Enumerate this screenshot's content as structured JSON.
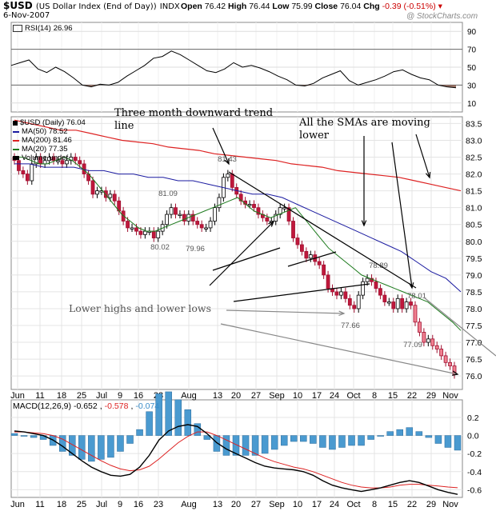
{
  "header": {
    "symbol": "$USD",
    "name": "(US Dollar Index (End of Day))",
    "exchange": "INDX",
    "date": "6-Nov-2007",
    "open_label": "Open",
    "open": "76.42",
    "high_label": "High",
    "high": "76.44",
    "low_label": "Low",
    "low": "75.99",
    "close_label": "Close",
    "close": "76.04",
    "chg_label": "Chg",
    "chg": "-0.39 (-0.51%)",
    "brand": "@ StockCharts.com"
  },
  "rsi": {
    "label": "RSI(14)",
    "value": "26.96",
    "ticks": [
      90,
      70,
      50,
      30,
      10
    ]
  },
  "price_legend": [
    {
      "text": "$USD (Daily) 76.04",
      "color": "#000000"
    },
    {
      "text": "MA(50) 78.52",
      "color": "#1a1aa0"
    },
    {
      "text": "MA(200) 81.46",
      "color": "#dd2222"
    },
    {
      "text": "MA(20) 77.35",
      "color": "#1c7a1c"
    },
    {
      "text": "Volume undef",
      "color": "#000000"
    }
  ],
  "macd": {
    "label": "MACD(12,26,9)",
    "macd": "-0.652",
    "signal": "-0.578",
    "hist": "-0.074",
    "ticks": [
      "0.2",
      "0.0",
      "-0.2",
      "-0.4",
      "-0.6"
    ]
  },
  "annotations": {
    "trendline": "Three month downward trend line",
    "smas": "All the SMAs are moving lower",
    "lows": "Lower highs and lower lows"
  },
  "x_labels": [
    "Jun",
    "11",
    "18",
    "25",
    "Jul",
    "9",
    "16",
    "23",
    "Aug",
    "13",
    "20",
    "27",
    "Sep",
    "10",
    "17",
    "24",
    "Oct",
    "8",
    "15",
    "22",
    "29",
    "Nov"
  ],
  "chart_data": {
    "type": "line",
    "title": "$USD (US Dollar Index (End of Day)) INDX",
    "ylim": [
      75.6,
      83.7
    ],
    "price_ticks": [
      83.5,
      83.0,
      82.5,
      82.0,
      81.5,
      81.0,
      80.5,
      80.0,
      79.5,
      79.0,
      78.5,
      78.0,
      77.5,
      77.0,
      76.5,
      76.0
    ],
    "data_labels": [
      {
        "text": "81.43",
        "value": 81.43
      },
      {
        "text": "81.09",
        "value": 81.09
      },
      {
        "text": "80.02",
        "value": 80.02
      },
      {
        "text": "79.96",
        "value": 79.96
      },
      {
        "text": "78.89",
        "value": 78.89
      },
      {
        "text": "78.01",
        "value": 78.01
      },
      {
        "text": "77.66",
        "value": 77.66
      },
      {
        "text": "77.09",
        "value": 77.09
      }
    ],
    "series": [
      {
        "name": "$USD (Daily)",
        "close": [
          82.4,
          82.1,
          82.0,
          81.8,
          82.3,
          82.5,
          82.3,
          82.4,
          82.5,
          82.4,
          82.4,
          82.3,
          82.4,
          82.5,
          82.4,
          82.3,
          82.0,
          81.8,
          81.4,
          81.5,
          81.5,
          81.3,
          81.4,
          81.2,
          80.9,
          80.6,
          80.4,
          80.4,
          80.3,
          80.2,
          80.3,
          80.3,
          80.1,
          80.3,
          80.5,
          80.8,
          81.0,
          80.8,
          80.8,
          80.6,
          80.8,
          80.6,
          80.5,
          80.4,
          80.4,
          80.6,
          81.0,
          81.3,
          81.9,
          82.0,
          81.6,
          81.4,
          81.2,
          81.1,
          81.1,
          81.0,
          80.8,
          80.7,
          80.6,
          80.6,
          80.8,
          81.0,
          81.0,
          80.6,
          80.1,
          79.9,
          79.7,
          79.5,
          79.6,
          79.4,
          79.3,
          79.0,
          78.6,
          78.5,
          78.4,
          78.5,
          78.3,
          78.1,
          78.0,
          78.4,
          78.8,
          78.9,
          78.8,
          78.6,
          78.4,
          78.2,
          78.2,
          78.0,
          78.3,
          78.0,
          78.2,
          78.1,
          77.6,
          77.3,
          77.0,
          77.1,
          76.9,
          76.8,
          76.6,
          76.4,
          76.3,
          76.04
        ]
      },
      {
        "name": "MA(50)",
        "values": [
          82.3,
          82.3,
          82.2,
          82.2,
          82.2,
          82.1,
          82.1,
          82.0,
          82.0,
          81.9,
          81.9,
          81.8,
          81.8,
          81.7,
          81.6,
          81.5,
          81.4,
          81.4,
          81.3,
          81.1,
          80.9,
          80.7,
          80.5,
          80.3,
          80.1,
          79.9,
          79.7,
          79.4,
          79.1,
          78.9,
          78.5
        ]
      },
      {
        "name": "MA(200)",
        "values": [
          83.6,
          83.5,
          83.4,
          83.3,
          83.3,
          83.2,
          83.1,
          83.0,
          82.95,
          82.9,
          82.8,
          82.75,
          82.7,
          82.6,
          82.55,
          82.5,
          82.45,
          82.4,
          82.3,
          82.25,
          82.2,
          82.1,
          82.05,
          82.0,
          81.95,
          81.9,
          81.8,
          81.7,
          81.6,
          81.5
        ]
      },
      {
        "name": "MA(20)",
        "values": [
          82.5,
          82.5,
          82.4,
          82.3,
          82.3,
          82.4,
          82.5,
          82.4,
          82.2,
          82.0,
          81.7,
          81.4,
          81.1,
          80.8,
          80.6,
          80.4,
          80.3,
          80.3,
          80.4,
          80.5,
          80.6,
          80.7,
          80.8,
          80.9,
          81.0,
          81.1,
          81.2,
          81.3,
          81.1,
          80.9,
          80.8,
          80.7,
          80.8,
          80.9,
          81.0,
          80.7,
          80.4,
          80.1,
          79.8,
          79.6,
          79.4,
          79.2,
          79.0,
          78.9,
          78.8,
          78.7,
          78.6,
          78.5,
          78.4,
          78.3,
          78.2,
          78.0,
          77.8,
          77.6,
          77.35
        ]
      },
      {
        "name": "RSI(14)",
        "values": [
          52,
          55,
          58,
          48,
          44,
          50,
          45,
          38,
          30,
          28,
          31,
          30,
          33,
          40,
          46,
          52,
          60,
          62,
          68,
          64,
          58,
          52,
          46,
          44,
          48,
          55,
          50,
          52,
          49,
          45,
          40,
          36,
          30,
          29,
          32,
          38,
          42,
          46,
          35,
          30,
          33,
          36,
          40,
          45,
          47,
          42,
          38,
          36,
          30,
          28,
          26.96
        ]
      },
      {
        "name": "MACD",
        "values": [
          0.05,
          0.04,
          0.02,
          0.0,
          -0.05,
          -0.12,
          -0.2,
          -0.28,
          -0.35,
          -0.4,
          -0.44,
          -0.45,
          -0.43,
          -0.35,
          -0.22,
          -0.05,
          0.05,
          0.1,
          0.12,
          0.1,
          0.02,
          -0.08,
          -0.15,
          -0.2,
          -0.25,
          -0.3,
          -0.34,
          -0.36,
          -0.37,
          -0.38,
          -0.4,
          -0.44,
          -0.5,
          -0.55,
          -0.58,
          -0.6,
          -0.62,
          -0.6,
          -0.58,
          -0.55,
          -0.52,
          -0.5,
          -0.52,
          -0.56,
          -0.6,
          -0.63,
          -0.652
        ]
      },
      {
        "name": "Signal",
        "values": [
          0.04,
          0.04,
          0.03,
          0.02,
          0.0,
          -0.04,
          -0.1,
          -0.16,
          -0.22,
          -0.28,
          -0.33,
          -0.37,
          -0.39,
          -0.38,
          -0.34,
          -0.26,
          -0.17,
          -0.08,
          -0.01,
          0.04,
          0.04,
          0.0,
          -0.05,
          -0.1,
          -0.15,
          -0.2,
          -0.25,
          -0.29,
          -0.32,
          -0.35,
          -0.37,
          -0.4,
          -0.44,
          -0.48,
          -0.52,
          -0.55,
          -0.57,
          -0.58,
          -0.58,
          -0.57,
          -0.55,
          -0.54,
          -0.54,
          -0.55,
          -0.56,
          -0.57,
          -0.578
        ]
      }
    ]
  }
}
